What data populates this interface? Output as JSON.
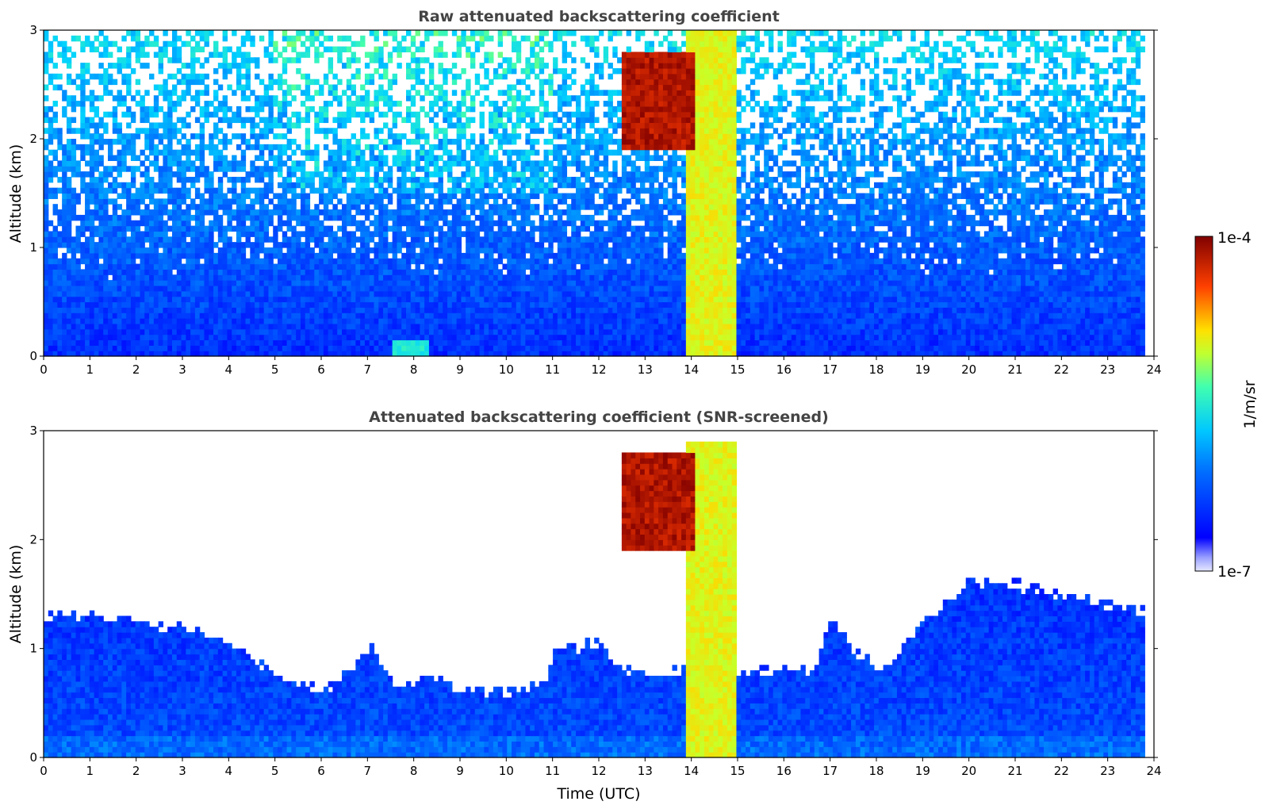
{
  "chart_data": [
    {
      "type": "heatmap",
      "title": "Raw attenuated backscattering coefficient",
      "xlabel": "",
      "ylabel": "Altitude (km)",
      "xlim": [
        0,
        24
      ],
      "ylim": [
        0,
        3
      ],
      "xticks": [
        0,
        1,
        2,
        3,
        4,
        5,
        6,
        7,
        8,
        9,
        10,
        11,
        12,
        13,
        14,
        15,
        16,
        17,
        18,
        19,
        20,
        21,
        22,
        23,
        24
      ],
      "yticks": [
        0,
        1,
        2,
        3
      ],
      "data_end_time": 23.8,
      "screened": false,
      "features": [
        {
          "label": "",
          "x_range": [
            13.9,
            15.0
          ],
          "y_range": [
            0,
            3
          ],
          "level": 0.7
        },
        {
          "label": "",
          "x_range": [
            12.5,
            14.1
          ],
          "y_range": [
            1.9,
            2.8
          ],
          "level": 0.95
        },
        {
          "label": "",
          "x_range": [
            7.5,
            8.3
          ],
          "y_range": [
            0,
            0.15
          ],
          "level": 0.5
        }
      ]
    },
    {
      "type": "heatmap",
      "title": "Attenuated backscattering coefficient (SNR-screened)",
      "xlabel": "Time (UTC)",
      "ylabel": "Altitude (km)",
      "xlim": [
        0,
        24
      ],
      "ylim": [
        0,
        3
      ],
      "xticks": [
        0,
        1,
        2,
        3,
        4,
        5,
        6,
        7,
        8,
        9,
        10,
        11,
        12,
        13,
        14,
        15,
        16,
        17,
        18,
        19,
        20,
        21,
        22,
        23,
        24
      ],
      "yticks": [
        0,
        1,
        2,
        3
      ],
      "data_end_time": 23.8,
      "screened": true,
      "boundary_layer_top": [
        [
          0,
          1.3
        ],
        [
          1,
          1.3
        ],
        [
          2,
          1.25
        ],
        [
          3,
          1.2
        ],
        [
          4,
          1.05
        ],
        [
          4.8,
          0.85
        ],
        [
          5.3,
          0.7
        ],
        [
          6,
          0.6
        ],
        [
          6.5,
          0.75
        ],
        [
          7.1,
          1.0
        ],
        [
          7.6,
          0.65
        ],
        [
          8.5,
          0.75
        ],
        [
          9,
          0.6
        ],
        [
          10,
          0.6
        ],
        [
          10.9,
          0.7
        ],
        [
          11,
          1.0
        ],
        [
          12,
          1.05
        ],
        [
          12.5,
          0.8
        ],
        [
          13,
          0.75
        ],
        [
          14,
          0.8
        ],
        [
          15,
          0.75
        ],
        [
          16,
          0.8
        ],
        [
          16.7,
          0.8
        ],
        [
          17,
          1.3
        ],
        [
          17.5,
          1.0
        ],
        [
          18,
          0.8
        ],
        [
          18.5,
          0.95
        ],
        [
          19,
          1.25
        ],
        [
          20,
          1.6
        ],
        [
          21,
          1.6
        ],
        [
          22,
          1.5
        ],
        [
          23,
          1.4
        ],
        [
          23.8,
          1.35
        ]
      ],
      "features": [
        {
          "label": "",
          "x_range": [
            13.9,
            15.0
          ],
          "y_range": [
            0,
            2.9
          ],
          "level": 0.7
        },
        {
          "label": "",
          "x_range": [
            12.5,
            14.1
          ],
          "y_range": [
            1.9,
            2.8
          ],
          "level": 0.95
        }
      ]
    }
  ],
  "colorbar": {
    "label": "1/m/sr",
    "max_label": "1e-4",
    "min_label": "1e-7",
    "vmin": 1e-07,
    "vmax": 0.0001,
    "colormap": "jet"
  }
}
